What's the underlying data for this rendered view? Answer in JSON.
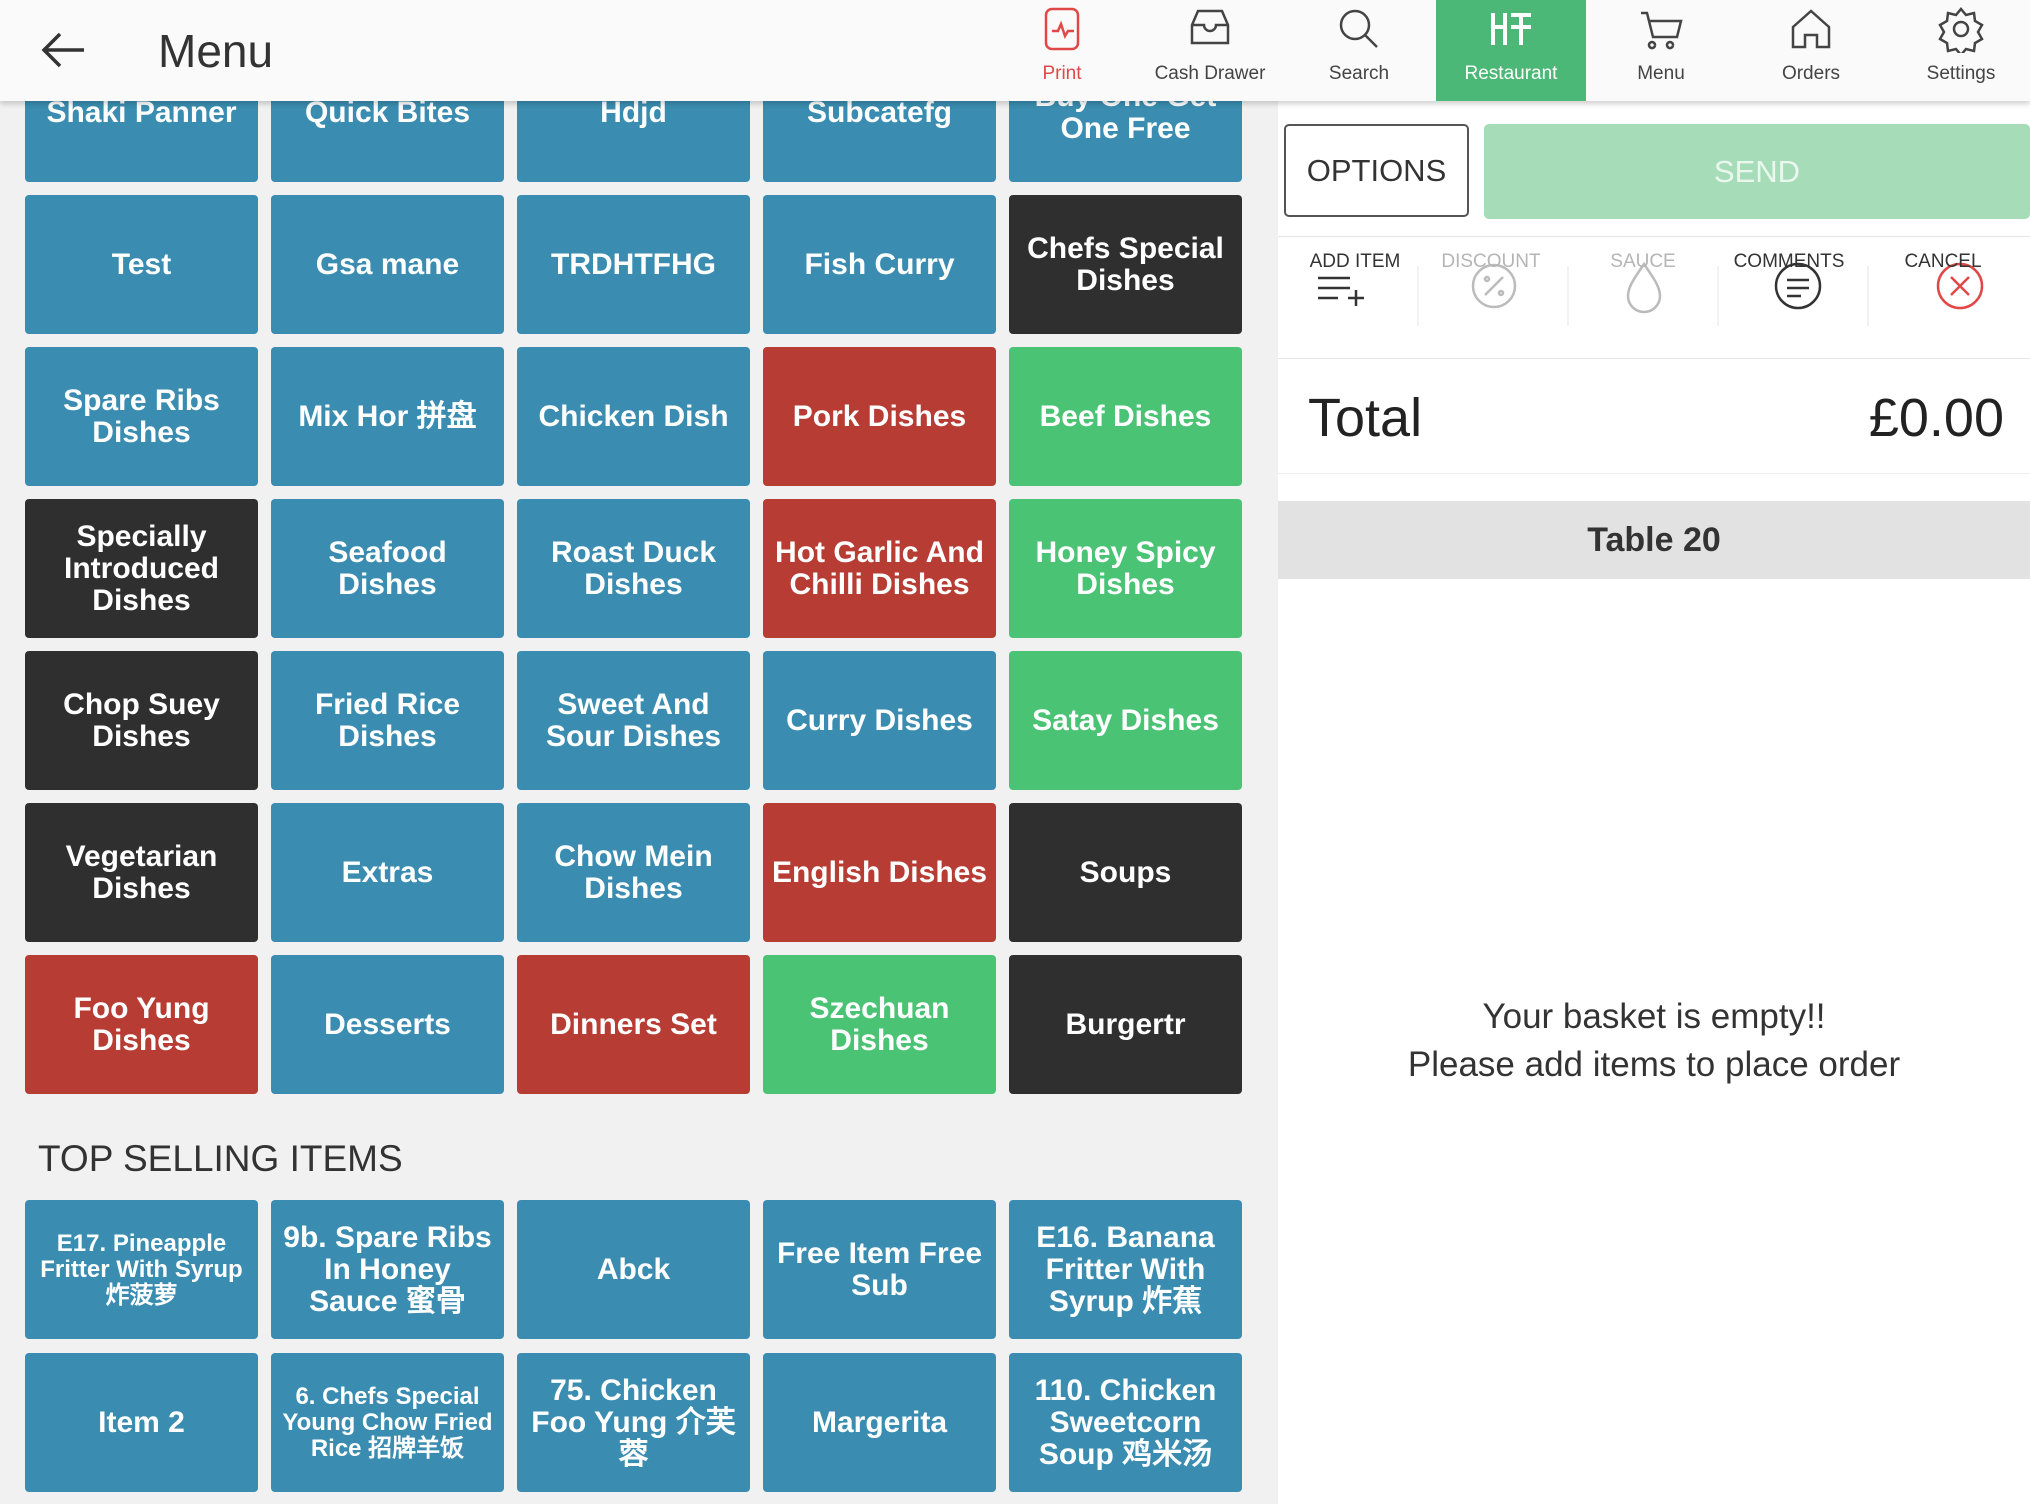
{
  "header": {
    "title": "Menu",
    "nav": [
      {
        "label": "Print",
        "active": false
      },
      {
        "label": "Cash Drawer",
        "active": false
      },
      {
        "label": "Search",
        "active": false
      },
      {
        "label": "Restaurant",
        "active": true
      },
      {
        "label": "Menu",
        "active": false
      },
      {
        "label": "Orders",
        "active": false
      },
      {
        "label": "Settings",
        "active": false
      }
    ]
  },
  "categories": [
    {
      "label": "Shaki Panner",
      "color": "#3a8db0"
    },
    {
      "label": "Quick Bites",
      "color": "#3a8db0"
    },
    {
      "label": "Hdjd",
      "color": "#3a8db0"
    },
    {
      "label": "Subcatefg",
      "color": "#3a8db0"
    },
    {
      "label": "Buy One Get One Free",
      "color": "#3a8db0"
    },
    {
      "label": "Test",
      "color": "#3a8db0"
    },
    {
      "label": "Gsa mane",
      "color": "#3a8db0"
    },
    {
      "label": "TRDHTFHG",
      "color": "#3a8db0"
    },
    {
      "label": "Fish Curry",
      "color": "#3a8db0"
    },
    {
      "label": "Chefs Special Dishes",
      "color": "#2f2f2f"
    },
    {
      "label": "Spare Ribs Dishes",
      "color": "#3a8db0"
    },
    {
      "label": "Mix Hor 拼盘",
      "color": "#3a8db0"
    },
    {
      "label": "Chicken Dish",
      "color": "#3a8db0"
    },
    {
      "label": "Pork Dishes",
      "color": "#b73d34"
    },
    {
      "label": "Beef Dishes",
      "color": "#4bc375"
    },
    {
      "label": "Specially Introduced Dishes",
      "color": "#2f2f2f"
    },
    {
      "label": "Seafood Dishes",
      "color": "#3a8db0"
    },
    {
      "label": "Roast Duck Dishes",
      "color": "#3a8db0"
    },
    {
      "label": "Hot Garlic And Chilli Dishes",
      "color": "#b73d34"
    },
    {
      "label": "Honey Spicy Dishes",
      "color": "#4bc375"
    },
    {
      "label": "Chop Suey Dishes",
      "color": "#2f2f2f"
    },
    {
      "label": "Fried Rice Dishes",
      "color": "#3a8db0"
    },
    {
      "label": "Sweet And Sour Dishes",
      "color": "#3a8db0"
    },
    {
      "label": "Curry Dishes",
      "color": "#3a8db0"
    },
    {
      "label": "Satay Dishes",
      "color": "#4bc375"
    },
    {
      "label": "Vegetarian Dishes",
      "color": "#2f2f2f"
    },
    {
      "label": "Extras",
      "color": "#3a8db0"
    },
    {
      "label": "Chow Mein Dishes",
      "color": "#3a8db0"
    },
    {
      "label": "English Dishes",
      "color": "#b73d34"
    },
    {
      "label": "Soups",
      "color": "#2f2f2f"
    },
    {
      "label": "Foo Yung Dishes",
      "color": "#b73d34"
    },
    {
      "label": "Desserts",
      "color": "#3a8db0"
    },
    {
      "label": "Dinners Set",
      "color": "#b73d34"
    },
    {
      "label": "Szechuan Dishes",
      "color": "#4bc375"
    },
    {
      "label": "Burgertr",
      "color": "#2f2f2f"
    }
  ],
  "top_selling": {
    "title": "TOP SELLING ITEMS",
    "items": [
      "E17. Pineapple Fritter With Syrup 炸菠萝",
      "9b. Spare Ribs In Honey Sauce 蜜骨",
      "Abck",
      "Free Item Free Sub",
      "E16. Banana Fritter With Syrup 炸蕉",
      "Item 2",
      "6. Chefs Special Young Chow Fried Rice 招牌羊饭",
      "75. Chicken Foo Yung 介芙蓉",
      "Margerita",
      "110. Chicken Sweetcorn Soup 鸡米汤"
    ]
  },
  "order": {
    "options": "OPTIONS",
    "send": "SEND",
    "actions": [
      "ADD ITEM",
      "DISCOUNT",
      "SAUCE",
      "COMMENTS",
      "CANCEL"
    ],
    "total_label": "Total",
    "total_value": "£0.00",
    "table": "Table 20",
    "empty_line1": "Your basket is empty!!",
    "empty_line2": "Please add items to place order"
  }
}
